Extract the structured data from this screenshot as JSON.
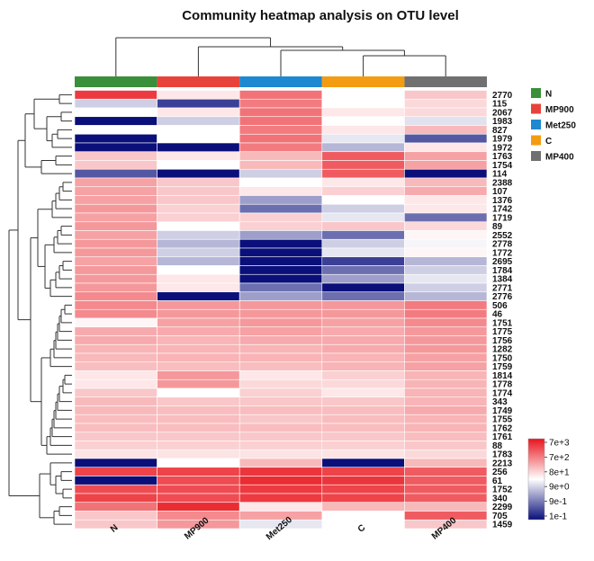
{
  "chart_data": {
    "type": "heatmap",
    "title": "Community heatmap analysis on OTU level",
    "columns": [
      "N",
      "MP900",
      "Met250",
      "C",
      "MP400"
    ],
    "column_colors": [
      "#3a8f3a",
      "#e8433a",
      "#1e88d0",
      "#f39c12",
      "#707070"
    ],
    "rows": [
      "2770",
      "115",
      "2067",
      "1983",
      "827",
      "1979",
      "1972",
      "1763",
      "1754",
      "114",
      "2388",
      "107",
      "1376",
      "1742",
      "1719",
      "89",
      "2552",
      "2778",
      "1772",
      "2695",
      "1784",
      "1384",
      "2771",
      "2776",
      "506",
      "46",
      "1751",
      "1775",
      "1756",
      "1282",
      "1750",
      "1759",
      "1814",
      "1778",
      "1774",
      "343",
      "1749",
      "1755",
      "1762",
      "1761",
      "88",
      "1783",
      "2213",
      "256",
      "61",
      "1752",
      "340",
      "2299",
      "705",
      "1459"
    ],
    "values": [
      [
        0.92,
        0.55,
        0.8,
        0.5,
        0.62
      ],
      [
        0.4,
        0.1,
        0.78,
        0.5,
        0.58
      ],
      [
        0.5,
        0.55,
        0.8,
        0.55,
        0.58
      ],
      [
        0.0,
        0.4,
        0.8,
        0.5,
        0.44
      ],
      [
        0.5,
        0.5,
        0.78,
        0.55,
        0.65
      ],
      [
        0.0,
        0.5,
        0.8,
        0.45,
        0.15
      ],
      [
        0.0,
        0.0,
        0.78,
        0.35,
        0.55
      ],
      [
        0.62,
        0.55,
        0.65,
        0.85,
        0.7
      ],
      [
        0.62,
        0.5,
        0.65,
        0.85,
        0.7
      ],
      [
        0.15,
        0.0,
        0.4,
        0.85,
        0.0
      ],
      [
        0.7,
        0.62,
        0.5,
        0.55,
        0.65
      ],
      [
        0.7,
        0.62,
        0.55,
        0.6,
        0.68
      ],
      [
        0.7,
        0.62,
        0.3,
        0.5,
        0.55
      ],
      [
        0.72,
        0.6,
        0.2,
        0.4,
        0.55
      ],
      [
        0.7,
        0.6,
        0.6,
        0.45,
        0.2
      ],
      [
        0.72,
        0.5,
        0.6,
        0.62,
        0.58
      ],
      [
        0.7,
        0.4,
        0.3,
        0.2,
        0.52
      ],
      [
        0.72,
        0.35,
        0.0,
        0.4,
        0.48
      ],
      [
        0.72,
        0.4,
        0.0,
        0.45,
        0.52
      ],
      [
        0.7,
        0.35,
        0.0,
        0.1,
        0.35
      ],
      [
        0.72,
        0.5,
        0.0,
        0.2,
        0.4
      ],
      [
        0.72,
        0.55,
        0.0,
        0.3,
        0.45
      ],
      [
        0.72,
        0.55,
        0.2,
        0.0,
        0.4
      ],
      [
        0.75,
        0.0,
        0.3,
        0.2,
        0.35
      ],
      [
        0.75,
        0.72,
        0.72,
        0.72,
        0.78
      ],
      [
        0.75,
        0.72,
        0.72,
        0.72,
        0.78
      ],
      [
        0.52,
        0.7,
        0.72,
        0.7,
        0.75
      ],
      [
        0.68,
        0.68,
        0.7,
        0.68,
        0.72
      ],
      [
        0.68,
        0.66,
        0.68,
        0.68,
        0.72
      ],
      [
        0.66,
        0.66,
        0.66,
        0.68,
        0.72
      ],
      [
        0.65,
        0.66,
        0.66,
        0.66,
        0.7
      ],
      [
        0.64,
        0.64,
        0.64,
        0.66,
        0.7
      ],
      [
        0.55,
        0.72,
        0.55,
        0.6,
        0.66
      ],
      [
        0.55,
        0.72,
        0.58,
        0.58,
        0.66
      ],
      [
        0.62,
        0.5,
        0.6,
        0.55,
        0.66
      ],
      [
        0.65,
        0.62,
        0.62,
        0.62,
        0.66
      ],
      [
        0.65,
        0.64,
        0.64,
        0.64,
        0.68
      ],
      [
        0.64,
        0.64,
        0.62,
        0.64,
        0.66
      ],
      [
        0.64,
        0.64,
        0.64,
        0.64,
        0.66
      ],
      [
        0.62,
        0.62,
        0.62,
        0.62,
        0.64
      ],
      [
        0.6,
        0.6,
        0.6,
        0.6,
        0.62
      ],
      [
        0.56,
        0.56,
        0.56,
        0.56,
        0.58
      ],
      [
        0.0,
        0.5,
        0.65,
        0.0,
        0.65
      ],
      [
        0.9,
        0.9,
        0.93,
        0.9,
        0.85
      ],
      [
        0.0,
        0.88,
        0.95,
        0.93,
        0.85
      ],
      [
        0.88,
        0.88,
        0.92,
        0.9,
        0.85
      ],
      [
        0.9,
        0.88,
        0.92,
        0.9,
        0.85
      ],
      [
        0.8,
        0.95,
        0.55,
        0.65,
        0.65
      ],
      [
        0.62,
        0.75,
        0.7,
        0.5,
        0.85
      ],
      [
        0.62,
        0.72,
        0.45,
        0.5,
        0.62
      ]
    ],
    "color_scale": {
      "labels": [
        "7e+3",
        "7e+2",
        "8e+1",
        "9e+0",
        "9e-1",
        "1e-1"
      ],
      "high_color": "#e8141c",
      "mid_color": "#ffffff",
      "low_color": "#0a0f7a"
    },
    "legend_position": "right",
    "grid": false
  }
}
